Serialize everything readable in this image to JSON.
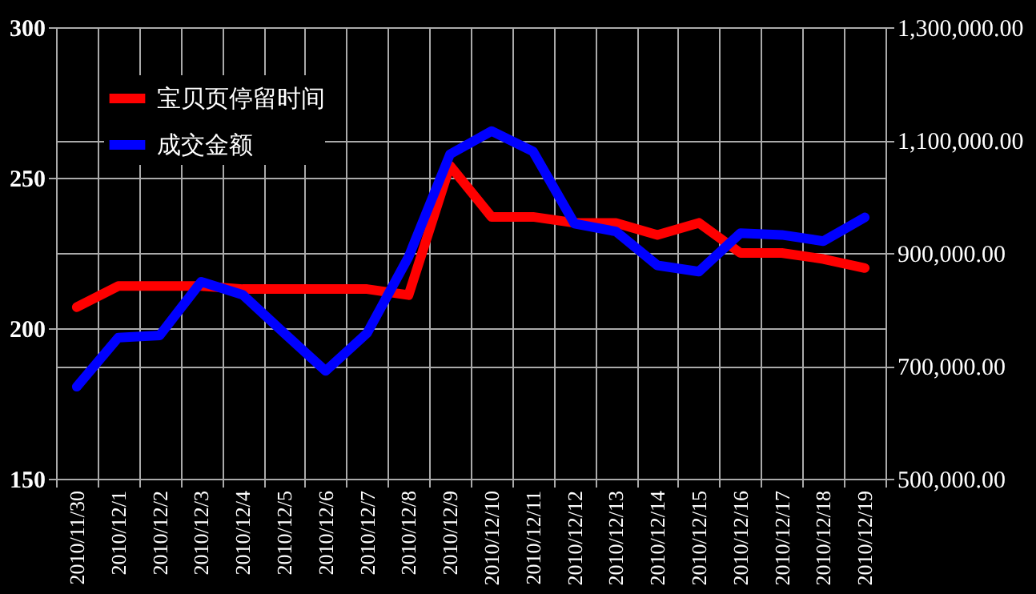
{
  "chart_data": {
    "type": "line",
    "categories": [
      "2010/11/30",
      "2010/12/1",
      "2010/12/2",
      "2010/12/3",
      "2010/12/4",
      "2010/12/5",
      "2010/12/6",
      "2010/12/7",
      "2010/12/8",
      "2010/12/9",
      "2010/12/10",
      "2010/12/11",
      "2010/12/12",
      "2010/12/13",
      "2010/12/14",
      "2010/12/15",
      "2010/12/16",
      "2010/12/17",
      "2010/12/18",
      "2010/12/19"
    ],
    "series": [
      {
        "name": "宝贝页停留时间",
        "color": "#ff0000",
        "values": [
          207,
          214,
          214,
          214,
          213,
          213,
          213,
          213,
          211,
          254,
          237,
          237,
          235,
          235,
          231,
          235,
          225,
          225,
          223,
          220
        ]
      },
      {
        "name": "成交金额",
        "color": "#0000ff",
        "axis": "y2",
        "values": [
          663000,
          750000,
          754000,
          849000,
          826000,
          758000,
          691000,
          758000,
          893000,
          1075000,
          1116000,
          1080000,
          952000,
          938000,
          878000,
          867000,
          935000,
          932000,
          921000,
          963000
        ]
      }
    ],
    "ylim": [
      150,
      300
    ],
    "yticks": [
      150,
      200,
      250,
      300
    ],
    "y2lim": [
      500000,
      1300000
    ],
    "y2ticks": [
      {
        "value": 500000,
        "label": "500,000.00"
      },
      {
        "value": 700000,
        "label": "700,000.00"
      },
      {
        "value": 900000,
        "label": "900,000.00"
      },
      {
        "value": 1100000,
        "label": "1,100,000.00"
      },
      {
        "value": 1300000,
        "label": "1,300,000.00"
      }
    ],
    "grid": true,
    "legend": "top left"
  }
}
